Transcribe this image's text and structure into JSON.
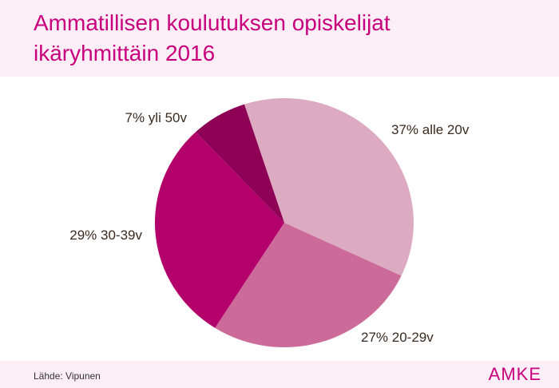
{
  "header": {
    "title_line1": "Ammatillisen koulutuksen opiskelijat",
    "title_line2": "ikäryhmittäin 2016"
  },
  "chart_data": {
    "type": "pie",
    "title": "Ammatillisen koulutuksen opiskelijat ikäryhmittäin 2016",
    "slices": [
      {
        "label": "37% alle 20v",
        "category": "alle 20v",
        "value": 37,
        "color": "#dcaac1"
      },
      {
        "label": "27% 20-29v",
        "category": "20-29v",
        "value": 27,
        "color": "#cc6a99"
      },
      {
        "label": "29% 30-39v",
        "category": "30-39v",
        "value": 29,
        "color": "#b3006a"
      },
      {
        "label": "7% yli 50v",
        "category": "yli 50v",
        "value": 7,
        "color": "#8e0055"
      }
    ]
  },
  "footer": {
    "source": "Lähde: Vipunen",
    "logo": "AMKE"
  }
}
